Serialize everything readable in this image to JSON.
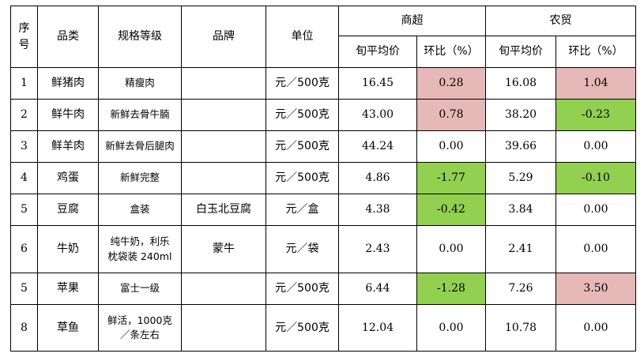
{
  "headers": {
    "seq": [
      "序",
      "号"
    ],
    "category": "品类",
    "spec": "规格等级",
    "brand": "品牌",
    "unit": "单位",
    "group1": "商超",
    "group2": "农贸",
    "avg_price": "旬平均价",
    "mom": "环比（%）"
  },
  "rows": [
    {
      "no": "1",
      "category": "鲜猪肉",
      "spec": [
        "精瘦肉"
      ],
      "brand": "",
      "unit": "元／500克",
      "s_price": "16.45",
      "s_mom": "0.28",
      "s_mom_color": "#e6b8b7",
      "f_price": "16.08",
      "f_mom": "1.04",
      "f_mom_color": "#e6b8b7"
    },
    {
      "no": "2",
      "category": "鲜牛肉",
      "spec": [
        "新鲜去骨牛腩"
      ],
      "brand": "",
      "unit": "元／500克",
      "s_price": "43.00",
      "s_mom": "0.78",
      "s_mom_color": "#e6b8b7",
      "f_price": "38.20",
      "f_mom": "-0.23",
      "f_mom_color": "#92d050"
    },
    {
      "no": "3",
      "category": "鲜羊肉",
      "spec": [
        "新鲜去骨后腿肉"
      ],
      "brand": "",
      "unit": "元／500克",
      "s_price": "44.24",
      "s_mom": "0.00",
      "s_mom_color": "",
      "f_price": "39.66",
      "f_mom": "0.00",
      "f_mom_color": ""
    },
    {
      "no": "4",
      "category": "鸡蛋",
      "spec": [
        "新鲜完整"
      ],
      "brand": "",
      "unit": "元／500克",
      "s_price": "4.86",
      "s_mom": "-1.77",
      "s_mom_color": "#92d050",
      "f_price": "5.29",
      "f_mom": "-0.10",
      "f_mom_color": "#92d050"
    },
    {
      "no": "5",
      "category": "豆腐",
      "spec": [
        "盒装"
      ],
      "brand": "白玉北豆腐",
      "unit": "元／盒",
      "s_price": "4.38",
      "s_mom": "-0.42",
      "s_mom_color": "#92d050",
      "f_price": "3.84",
      "f_mom": "0.00",
      "f_mom_color": ""
    },
    {
      "no": "6",
      "category": "牛奶",
      "spec": [
        "纯牛奶，利乐",
        "枕袋装 240ml"
      ],
      "brand": "蒙牛",
      "unit": "元／袋",
      "s_price": "2.43",
      "s_mom": "0.00",
      "s_mom_color": "",
      "f_price": "2.41",
      "f_mom": "0.00",
      "f_mom_color": ""
    },
    {
      "no": "5",
      "category": "苹果",
      "spec": [
        "富士一级"
      ],
      "brand": "",
      "unit": "元／500克",
      "s_price": "6.44",
      "s_mom": "-1.28",
      "s_mom_color": "#92d050",
      "f_price": "7.26",
      "f_mom": "3.50",
      "f_mom_color": "#e6b8b7"
    },
    {
      "no": "8",
      "category": "草鱼",
      "spec": [
        "鲜活，1000克",
        "／条左右"
      ],
      "brand": "",
      "unit": "元／500克",
      "s_price": "12.04",
      "s_mom": "0.00",
      "s_mom_color": "",
      "f_price": "10.78",
      "f_mom": "0.00",
      "f_mom_color": ""
    }
  ]
}
